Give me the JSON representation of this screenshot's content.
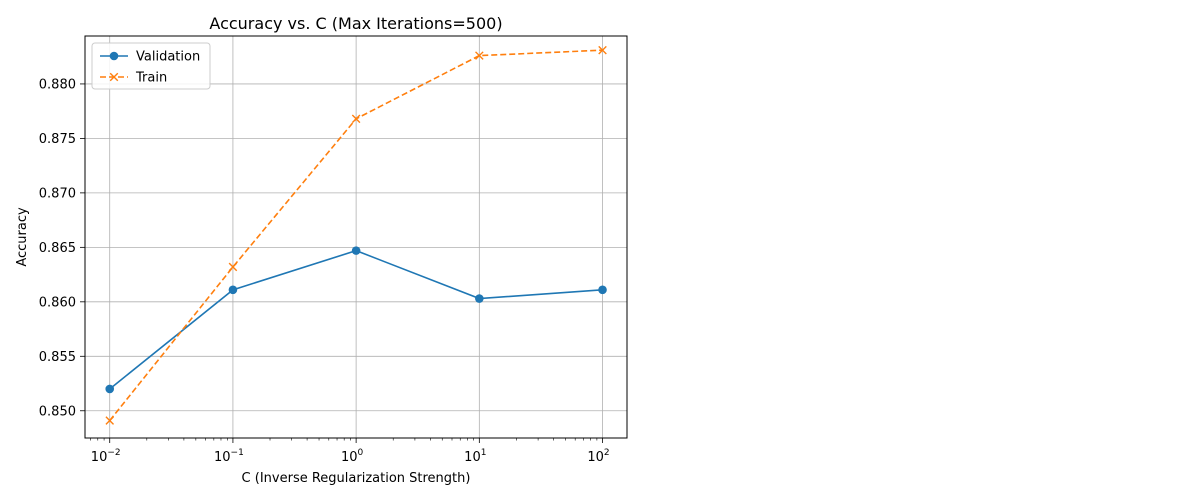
{
  "chart_data": {
    "type": "line",
    "title": "Accuracy vs. C (Max Iterations=500)",
    "xlabel": "C (Inverse Regularization Strength)",
    "ylabel": "Accuracy",
    "x_scale": "log",
    "x": [
      0.01,
      0.1,
      1,
      10,
      100
    ],
    "xlim": [
      0.0063,
      158
    ],
    "ylim": [
      0.8475,
      0.8844
    ],
    "x_ticks": [
      {
        "value": 0.01,
        "base": "10",
        "exp": "−2"
      },
      {
        "value": 0.1,
        "base": "10",
        "exp": "−1"
      },
      {
        "value": 1,
        "base": "10",
        "exp": "0"
      },
      {
        "value": 10,
        "base": "10",
        "exp": "1"
      },
      {
        "value": 100,
        "base": "10",
        "exp": "2"
      }
    ],
    "y_ticks": [
      0.85,
      0.855,
      0.86,
      0.865,
      0.87,
      0.875,
      0.88
    ],
    "y_tick_labels": [
      "0.850",
      "0.855",
      "0.860",
      "0.865",
      "0.870",
      "0.875",
      "0.880"
    ],
    "grid": true,
    "legend_position": "top-left",
    "series": [
      {
        "name": "Validation",
        "values": [
          0.852,
          0.8611,
          0.8647,
          0.8603,
          0.8611
        ],
        "color": "#1f77b4",
        "marker": "circle",
        "line_style": "solid"
      },
      {
        "name": "Train",
        "values": [
          0.8491,
          0.8632,
          0.8768,
          0.8826,
          0.8831
        ],
        "color": "#ff7f0e",
        "marker": "x",
        "line_style": "dashed"
      }
    ]
  }
}
